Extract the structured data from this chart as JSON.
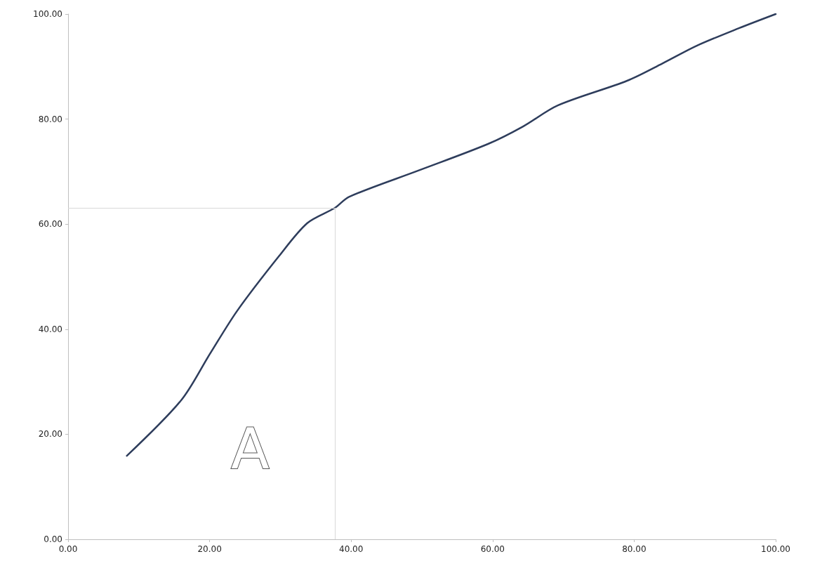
{
  "chart_data": {
    "type": "line",
    "x": [
      8.3,
      16.0,
      20.0,
      23.9,
      29.8,
      33.8,
      37.7,
      39.7,
      49.5,
      59.4,
      64.3,
      69.2,
      79.0,
      84.0,
      88.9,
      94.8,
      100
    ],
    "series": [
      {
        "color": "#2e3d5c",
        "values": [
          15.9,
          26.5,
          35.2,
          43.5,
          53.9,
          60.2,
          63.1,
          65.2,
          70.2,
          75.3,
          78.6,
          82.6,
          87.3,
          90.6,
          94.0,
          97.3,
          100
        ]
      }
    ],
    "xlim": [
      0,
      100
    ],
    "xticks": [
      {
        "value": 0,
        "label": "0.00"
      },
      {
        "value": 20,
        "label": "20.00"
      },
      {
        "value": 40,
        "label": "40.00"
      },
      {
        "value": 60,
        "label": "60.00"
      },
      {
        "value": 80,
        "label": "80.00"
      },
      {
        "value": 100,
        "label": "100.00"
      }
    ],
    "ylim": [
      0,
      100
    ],
    "yticks": [
      {
        "value": 0,
        "label": "0.00"
      },
      {
        "value": 20,
        "label": "20.00"
      },
      {
        "value": 40,
        "label": "40.00"
      },
      {
        "value": 60,
        "label": "60.00"
      },
      {
        "value": 80,
        "label": "80.00"
      },
      {
        "value": 100,
        "label": "100.00"
      }
    ],
    "ref_lines": [
      {
        "axis": "x",
        "value": 37.7,
        "color": "#d9d9d9"
      },
      {
        "axis": "y",
        "value": 63.1,
        "color": "#d9d9d9"
      }
    ],
    "annotations": [
      "A"
    ],
    "grid": false,
    "marker": "none",
    "line_style": "solid"
  }
}
